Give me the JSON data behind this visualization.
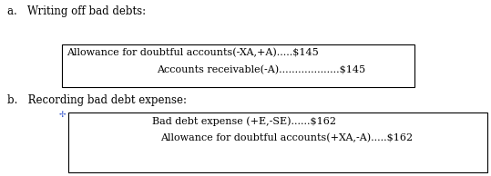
{
  "background_color": "#ffffff",
  "label_a": "a.   Writing off bad debts:",
  "label_b": "b.   Recording bad debt expense:",
  "box1_line1": "Allowance for doubtful accounts(-XA,+A).....$145",
  "box1_line2": "Accounts receivable(-A)...................$145",
  "box2_line1": "Bad debt expense (+E,-SE)......$162",
  "box2_line2": "Allowance for doubtful accounts(+XA,-A).....$162",
  "font_size": 8.0,
  "label_font_size": 8.5,
  "text_color": "#000000",
  "box_color": "#000000",
  "plus_color": "#3355cc",
  "figw": 5.39,
  "figh": 1.94,
  "dpi": 100
}
